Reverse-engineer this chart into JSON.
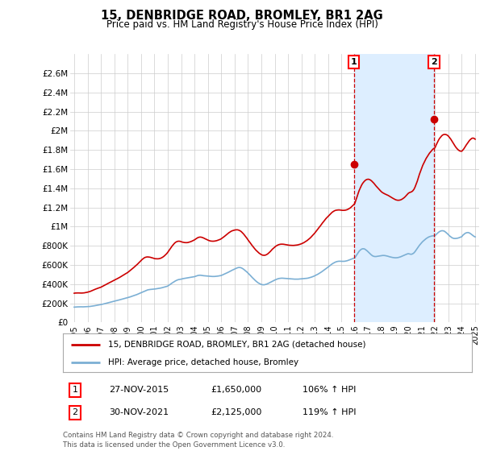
{
  "title": "15, DENBRIDGE ROAD, BROMLEY, BR1 2AG",
  "subtitle": "Price paid vs. HM Land Registry's House Price Index (HPI)",
  "ylim": [
    0,
    2800000
  ],
  "yticks": [
    0,
    200000,
    400000,
    600000,
    800000,
    1000000,
    1200000,
    1400000,
    1600000,
    1800000,
    2000000,
    2200000,
    2400000,
    2600000
  ],
  "ytick_labels": [
    "£0",
    "£200K",
    "£400K",
    "£600K",
    "£800K",
    "£1M",
    "£1.2M",
    "£1.4M",
    "£1.6M",
    "£1.8M",
    "£2M",
    "£2.2M",
    "£2.4M",
    "£2.6M"
  ],
  "hpi_color": "#7bafd4",
  "property_color": "#cc0000",
  "marker_color": "#cc0000",
  "sale1_x": 2015.92,
  "sale1_y": 1650000,
  "sale2_x": 2021.92,
  "sale2_y": 2125000,
  "vline_color": "#cc0000",
  "shade_color": "#ddeeff",
  "background_color": "#ffffff",
  "grid_color": "#cccccc",
  "legend_label_property": "15, DENBRIDGE ROAD, BROMLEY, BR1 2AG (detached house)",
  "legend_label_hpi": "HPI: Average price, detached house, Bromley",
  "annotation1_num": "1",
  "annotation1_date": "27-NOV-2015",
  "annotation1_price": "£1,650,000",
  "annotation1_pct": "106% ↑ HPI",
  "annotation2_num": "2",
  "annotation2_date": "30-NOV-2021",
  "annotation2_price": "£2,125,000",
  "annotation2_pct": "119% ↑ HPI",
  "footer": "Contains HM Land Registry data © Crown copyright and database right 2024.\nThis data is licensed under the Open Government Licence v3.0.",
  "xlim_left": 1994.7,
  "xlim_right": 2025.3,
  "hpi_data": {
    "1995.0": 160000,
    "1995.08": 161000,
    "1995.17": 162000,
    "1995.25": 162500,
    "1995.33": 163000,
    "1995.42": 163500,
    "1995.5": 163500,
    "1995.58": 163000,
    "1995.67": 163000,
    "1995.75": 163500,
    "1995.83": 164000,
    "1995.92": 164500,
    "1996.0": 165000,
    "1996.08": 166000,
    "1996.17": 167000,
    "1996.25": 168500,
    "1996.33": 170000,
    "1996.42": 172000,
    "1996.5": 174000,
    "1996.58": 176000,
    "1996.67": 178000,
    "1996.75": 180000,
    "1996.83": 182000,
    "1996.92": 184000,
    "1997.0": 186000,
    "1997.08": 189000,
    "1997.17": 192000,
    "1997.25": 195000,
    "1997.33": 198000,
    "1997.42": 201000,
    "1997.5": 204000,
    "1997.58": 207000,
    "1997.67": 210000,
    "1997.75": 213000,
    "1997.83": 216000,
    "1997.92": 219000,
    "1998.0": 222000,
    "1998.08": 225000,
    "1998.17": 228000,
    "1998.25": 231000,
    "1998.33": 234000,
    "1998.42": 237000,
    "1998.5": 240000,
    "1998.58": 243000,
    "1998.67": 246000,
    "1998.75": 249000,
    "1998.83": 252000,
    "1998.92": 255000,
    "1999.0": 258000,
    "1999.08": 262000,
    "1999.17": 266000,
    "1999.25": 270000,
    "1999.33": 274000,
    "1999.42": 278000,
    "1999.5": 282000,
    "1999.58": 286000,
    "1999.67": 290000,
    "1999.75": 295000,
    "1999.83": 300000,
    "1999.92": 305000,
    "2000.0": 310000,
    "2000.08": 315000,
    "2000.17": 320000,
    "2000.25": 325000,
    "2000.33": 330000,
    "2000.42": 335000,
    "2000.5": 340000,
    "2000.58": 342000,
    "2000.67": 344000,
    "2000.75": 345000,
    "2000.83": 346000,
    "2000.92": 347000,
    "2001.0": 348000,
    "2001.08": 350000,
    "2001.17": 352000,
    "2001.25": 354000,
    "2001.33": 356000,
    "2001.42": 358000,
    "2001.5": 360000,
    "2001.58": 363000,
    "2001.67": 366000,
    "2001.75": 369000,
    "2001.83": 372000,
    "2001.92": 376000,
    "2002.0": 380000,
    "2002.08": 388000,
    "2002.17": 396000,
    "2002.25": 404000,
    "2002.33": 412000,
    "2002.42": 420000,
    "2002.5": 428000,
    "2002.58": 434000,
    "2002.67": 440000,
    "2002.75": 445000,
    "2002.83": 448000,
    "2002.92": 450000,
    "2003.0": 452000,
    "2003.08": 455000,
    "2003.17": 458000,
    "2003.25": 460000,
    "2003.33": 462000,
    "2003.42": 464000,
    "2003.5": 466000,
    "2003.58": 468000,
    "2003.67": 470000,
    "2003.75": 472000,
    "2003.83": 474000,
    "2003.92": 476000,
    "2004.0": 478000,
    "2004.08": 482000,
    "2004.17": 486000,
    "2004.25": 490000,
    "2004.33": 492000,
    "2004.42": 493000,
    "2004.5": 492000,
    "2004.58": 490000,
    "2004.67": 488000,
    "2004.75": 487000,
    "2004.83": 486000,
    "2004.92": 485000,
    "2005.0": 484000,
    "2005.08": 483000,
    "2005.17": 482000,
    "2005.25": 481000,
    "2005.33": 480000,
    "2005.42": 480000,
    "2005.5": 480000,
    "2005.58": 481000,
    "2005.67": 482000,
    "2005.75": 484000,
    "2005.83": 486000,
    "2005.92": 488000,
    "2006.0": 490000,
    "2006.08": 495000,
    "2006.17": 500000,
    "2006.25": 505000,
    "2006.33": 510000,
    "2006.42": 516000,
    "2006.5": 522000,
    "2006.58": 528000,
    "2006.67": 534000,
    "2006.75": 540000,
    "2006.83": 546000,
    "2006.92": 552000,
    "2007.0": 558000,
    "2007.08": 563000,
    "2007.17": 568000,
    "2007.25": 572000,
    "2007.33": 574000,
    "2007.42": 573000,
    "2007.5": 570000,
    "2007.58": 564000,
    "2007.67": 556000,
    "2007.75": 547000,
    "2007.83": 537000,
    "2007.92": 527000,
    "2008.0": 516000,
    "2008.08": 504000,
    "2008.17": 492000,
    "2008.25": 480000,
    "2008.33": 468000,
    "2008.42": 456000,
    "2008.5": 445000,
    "2008.58": 434000,
    "2008.67": 424000,
    "2008.75": 415000,
    "2008.83": 408000,
    "2008.92": 402000,
    "2009.0": 397000,
    "2009.08": 394000,
    "2009.17": 393000,
    "2009.25": 394000,
    "2009.33": 397000,
    "2009.42": 401000,
    "2009.5": 406000,
    "2009.58": 412000,
    "2009.67": 418000,
    "2009.75": 424000,
    "2009.83": 430000,
    "2009.92": 436000,
    "2010.0": 442000,
    "2010.08": 447000,
    "2010.17": 452000,
    "2010.25": 456000,
    "2010.33": 459000,
    "2010.42": 461000,
    "2010.5": 462000,
    "2010.58": 462000,
    "2010.67": 461000,
    "2010.75": 460000,
    "2010.83": 459000,
    "2010.92": 458000,
    "2011.0": 457000,
    "2011.08": 456000,
    "2011.17": 455000,
    "2011.25": 454000,
    "2011.33": 453000,
    "2011.42": 452000,
    "2011.5": 452000,
    "2011.58": 452000,
    "2011.67": 452000,
    "2011.75": 452000,
    "2011.83": 453000,
    "2011.92": 454000,
    "2012.0": 455000,
    "2012.08": 456000,
    "2012.17": 457000,
    "2012.25": 458000,
    "2012.33": 459000,
    "2012.42": 461000,
    "2012.5": 463000,
    "2012.58": 466000,
    "2012.67": 469000,
    "2012.75": 473000,
    "2012.83": 477000,
    "2012.92": 482000,
    "2013.0": 487000,
    "2013.08": 493000,
    "2013.17": 499000,
    "2013.25": 505000,
    "2013.33": 512000,
    "2013.42": 519000,
    "2013.5": 527000,
    "2013.58": 535000,
    "2013.67": 543000,
    "2013.75": 552000,
    "2013.83": 561000,
    "2013.92": 570000,
    "2014.0": 579000,
    "2014.08": 588000,
    "2014.17": 597000,
    "2014.25": 606000,
    "2014.33": 614000,
    "2014.42": 621000,
    "2014.5": 627000,
    "2014.58": 632000,
    "2014.67": 636000,
    "2014.75": 638000,
    "2014.83": 639000,
    "2014.92": 639000,
    "2015.0": 638000,
    "2015.08": 638000,
    "2015.17": 638000,
    "2015.25": 639000,
    "2015.33": 641000,
    "2015.42": 644000,
    "2015.5": 648000,
    "2015.58": 652000,
    "2015.67": 657000,
    "2015.75": 662000,
    "2015.83": 666000,
    "2015.92": 670000,
    "2016.0": 674000,
    "2016.08": 693000,
    "2016.17": 712000,
    "2016.25": 730000,
    "2016.33": 745000,
    "2016.42": 757000,
    "2016.5": 765000,
    "2016.58": 769000,
    "2016.67": 769000,
    "2016.75": 765000,
    "2016.83": 757000,
    "2016.92": 747000,
    "2017.0": 736000,
    "2017.08": 724000,
    "2017.17": 713000,
    "2017.25": 703000,
    "2017.33": 695000,
    "2017.42": 690000,
    "2017.5": 688000,
    "2017.58": 688000,
    "2017.67": 690000,
    "2017.75": 692000,
    "2017.83": 694000,
    "2017.92": 696000,
    "2018.0": 698000,
    "2018.08": 699000,
    "2018.17": 699000,
    "2018.25": 698000,
    "2018.33": 696000,
    "2018.42": 693000,
    "2018.5": 690000,
    "2018.58": 686000,
    "2018.67": 683000,
    "2018.75": 680000,
    "2018.83": 678000,
    "2018.92": 676000,
    "2019.0": 675000,
    "2019.08": 675000,
    "2019.17": 676000,
    "2019.25": 678000,
    "2019.33": 681000,
    "2019.42": 685000,
    "2019.5": 690000,
    "2019.58": 695000,
    "2019.67": 700000,
    "2019.75": 705000,
    "2019.83": 710000,
    "2019.92": 715000,
    "2020.0": 718000,
    "2020.08": 715000,
    "2020.17": 712000,
    "2020.25": 712000,
    "2020.33": 717000,
    "2020.42": 726000,
    "2020.5": 739000,
    "2020.58": 755000,
    "2020.67": 772000,
    "2020.75": 789000,
    "2020.83": 805000,
    "2020.92": 820000,
    "2021.0": 833000,
    "2021.08": 845000,
    "2021.17": 856000,
    "2021.25": 866000,
    "2021.33": 875000,
    "2021.42": 883000,
    "2021.5": 890000,
    "2021.58": 895000,
    "2021.67": 899000,
    "2021.75": 902000,
    "2021.83": 904000,
    "2021.92": 905000,
    "2022.0": 905000,
    "2022.08": 918000,
    "2022.17": 930000,
    "2022.25": 940000,
    "2022.33": 948000,
    "2022.42": 954000,
    "2022.5": 957000,
    "2022.58": 957000,
    "2022.67": 954000,
    "2022.75": 947000,
    "2022.83": 938000,
    "2022.92": 927000,
    "2023.0": 915000,
    "2023.08": 904000,
    "2023.17": 894000,
    "2023.25": 886000,
    "2023.33": 880000,
    "2023.42": 877000,
    "2023.5": 876000,
    "2023.58": 877000,
    "2023.67": 879000,
    "2023.75": 882000,
    "2023.83": 886000,
    "2023.92": 890000,
    "2024.0": 895000,
    "2024.08": 910000,
    "2024.17": 920000,
    "2024.25": 930000,
    "2024.33": 935000,
    "2024.42": 938000,
    "2024.5": 938000,
    "2024.58": 933000,
    "2024.67": 925000,
    "2024.75": 916000,
    "2024.83": 907000,
    "2024.92": 898000,
    "2025.0": 893000
  },
  "prop_data": {
    "1995.0": 305000,
    "1995.08": 307000,
    "1995.17": 308000,
    "1995.25": 308000,
    "1995.33": 308000,
    "1995.42": 307000,
    "1995.5": 307000,
    "1995.58": 307000,
    "1995.67": 308000,
    "1995.75": 309000,
    "1995.83": 311000,
    "1995.92": 313000,
    "1996.0": 316000,
    "1996.08": 319000,
    "1996.17": 323000,
    "1996.25": 327000,
    "1996.33": 332000,
    "1996.42": 337000,
    "1996.5": 342000,
    "1996.58": 347000,
    "1996.67": 352000,
    "1996.75": 356000,
    "1996.83": 360000,
    "1996.92": 364000,
    "1997.0": 368000,
    "1997.08": 374000,
    "1997.17": 380000,
    "1997.25": 387000,
    "1997.33": 393000,
    "1997.42": 399000,
    "1997.5": 405000,
    "1997.58": 411000,
    "1997.67": 417000,
    "1997.75": 423000,
    "1997.83": 429000,
    "1997.92": 435000,
    "1998.0": 441000,
    "1998.08": 447000,
    "1998.17": 453000,
    "1998.25": 459000,
    "1998.33": 465000,
    "1998.42": 472000,
    "1998.5": 479000,
    "1998.58": 486000,
    "1998.67": 493000,
    "1998.75": 500000,
    "1998.83": 507000,
    "1998.92": 514000,
    "1999.0": 521000,
    "1999.08": 530000,
    "1999.17": 539000,
    "1999.25": 549000,
    "1999.33": 559000,
    "1999.42": 569000,
    "1999.5": 579000,
    "1999.58": 589000,
    "1999.67": 599000,
    "1999.75": 610000,
    "1999.83": 622000,
    "1999.92": 634000,
    "2000.0": 646000,
    "2000.08": 657000,
    "2000.17": 667000,
    "2000.25": 675000,
    "2000.33": 680000,
    "2000.42": 683000,
    "2000.5": 684000,
    "2000.58": 683000,
    "2000.67": 681000,
    "2000.75": 678000,
    "2000.83": 675000,
    "2000.92": 671000,
    "2001.0": 667000,
    "2001.08": 665000,
    "2001.17": 664000,
    "2001.25": 664000,
    "2001.33": 665000,
    "2001.42": 668000,
    "2001.5": 672000,
    "2001.58": 678000,
    "2001.67": 686000,
    "2001.75": 695000,
    "2001.83": 706000,
    "2001.92": 718000,
    "2002.0": 732000,
    "2002.08": 748000,
    "2002.17": 765000,
    "2002.25": 782000,
    "2002.33": 798000,
    "2002.42": 813000,
    "2002.5": 826000,
    "2002.58": 836000,
    "2002.67": 843000,
    "2002.75": 847000,
    "2002.83": 848000,
    "2002.92": 847000,
    "2003.0": 843000,
    "2003.08": 839000,
    "2003.17": 836000,
    "2003.25": 834000,
    "2003.33": 833000,
    "2003.42": 833000,
    "2003.5": 834000,
    "2003.58": 837000,
    "2003.67": 841000,
    "2003.75": 845000,
    "2003.83": 850000,
    "2003.92": 856000,
    "2004.0": 862000,
    "2004.08": 870000,
    "2004.17": 878000,
    "2004.25": 885000,
    "2004.33": 889000,
    "2004.42": 891000,
    "2004.5": 890000,
    "2004.58": 887000,
    "2004.67": 882000,
    "2004.75": 876000,
    "2004.83": 871000,
    "2004.92": 865000,
    "2005.0": 859000,
    "2005.08": 855000,
    "2005.17": 851000,
    "2005.25": 849000,
    "2005.33": 848000,
    "2005.42": 848000,
    "2005.5": 849000,
    "2005.58": 851000,
    "2005.67": 854000,
    "2005.75": 858000,
    "2005.83": 862000,
    "2005.92": 867000,
    "2006.0": 873000,
    "2006.08": 881000,
    "2006.17": 890000,
    "2006.25": 899000,
    "2006.33": 908000,
    "2006.42": 918000,
    "2006.5": 928000,
    "2006.58": 937000,
    "2006.67": 945000,
    "2006.75": 952000,
    "2006.83": 957000,
    "2006.92": 961000,
    "2007.0": 964000,
    "2007.08": 966000,
    "2007.17": 967000,
    "2007.25": 966000,
    "2007.33": 962000,
    "2007.42": 956000,
    "2007.5": 948000,
    "2007.58": 937000,
    "2007.67": 924000,
    "2007.75": 910000,
    "2007.83": 895000,
    "2007.92": 879000,
    "2008.0": 863000,
    "2008.08": 847000,
    "2008.17": 831000,
    "2008.25": 815000,
    "2008.33": 800000,
    "2008.42": 785000,
    "2008.5": 771000,
    "2008.58": 757000,
    "2008.67": 745000,
    "2008.75": 734000,
    "2008.83": 724000,
    "2008.92": 715000,
    "2009.0": 708000,
    "2009.08": 703000,
    "2009.17": 701000,
    "2009.25": 701000,
    "2009.33": 704000,
    "2009.42": 710000,
    "2009.5": 718000,
    "2009.58": 728000,
    "2009.67": 740000,
    "2009.75": 753000,
    "2009.83": 765000,
    "2009.92": 776000,
    "2010.0": 786000,
    "2010.08": 795000,
    "2010.17": 803000,
    "2010.25": 809000,
    "2010.33": 813000,
    "2010.42": 816000,
    "2010.5": 817000,
    "2010.58": 817000,
    "2010.67": 816000,
    "2010.75": 814000,
    "2010.83": 812000,
    "2010.92": 810000,
    "2011.0": 808000,
    "2011.08": 806000,
    "2011.17": 805000,
    "2011.25": 804000,
    "2011.33": 804000,
    "2011.42": 804000,
    "2011.5": 805000,
    "2011.58": 806000,
    "2011.67": 808000,
    "2011.75": 810000,
    "2011.83": 813000,
    "2011.92": 817000,
    "2012.0": 821000,
    "2012.08": 826000,
    "2012.17": 832000,
    "2012.25": 839000,
    "2012.33": 846000,
    "2012.42": 854000,
    "2012.5": 863000,
    "2012.58": 873000,
    "2012.67": 883000,
    "2012.75": 895000,
    "2012.83": 907000,
    "2012.92": 920000,
    "2013.0": 933000,
    "2013.08": 947000,
    "2013.17": 962000,
    "2013.25": 978000,
    "2013.33": 993000,
    "2013.42": 1008000,
    "2013.5": 1024000,
    "2013.58": 1039000,
    "2013.67": 1054000,
    "2013.75": 1069000,
    "2013.83": 1083000,
    "2013.92": 1096000,
    "2014.0": 1108000,
    "2014.08": 1120000,
    "2014.17": 1132000,
    "2014.25": 1143000,
    "2014.33": 1153000,
    "2014.42": 1161000,
    "2014.5": 1167000,
    "2014.58": 1171000,
    "2014.67": 1173000,
    "2014.75": 1174000,
    "2014.83": 1174000,
    "2014.92": 1173000,
    "2015.0": 1171000,
    "2015.08": 1170000,
    "2015.17": 1170000,
    "2015.25": 1171000,
    "2015.33": 1173000,
    "2015.42": 1177000,
    "2015.5": 1182000,
    "2015.58": 1189000,
    "2015.67": 1197000,
    "2015.75": 1207000,
    "2015.83": 1218000,
    "2015.92": 1230000,
    "2016.0": 1243000,
    "2016.08": 1278000,
    "2016.17": 1314000,
    "2016.25": 1349000,
    "2016.33": 1380000,
    "2016.42": 1408000,
    "2016.5": 1432000,
    "2016.58": 1451000,
    "2016.67": 1467000,
    "2016.75": 1479000,
    "2016.83": 1488000,
    "2016.92": 1493000,
    "2017.0": 1495000,
    "2017.08": 1492000,
    "2017.17": 1486000,
    "2017.25": 1477000,
    "2017.33": 1466000,
    "2017.42": 1453000,
    "2017.5": 1439000,
    "2017.58": 1425000,
    "2017.67": 1411000,
    "2017.75": 1398000,
    "2017.83": 1385000,
    "2017.92": 1373000,
    "2018.0": 1362000,
    "2018.08": 1354000,
    "2018.17": 1347000,
    "2018.25": 1341000,
    "2018.33": 1336000,
    "2018.42": 1330000,
    "2018.5": 1325000,
    "2018.58": 1318000,
    "2018.67": 1311000,
    "2018.75": 1304000,
    "2018.83": 1297000,
    "2018.92": 1290000,
    "2019.0": 1284000,
    "2019.08": 1279000,
    "2019.17": 1276000,
    "2019.25": 1275000,
    "2019.33": 1276000,
    "2019.42": 1279000,
    "2019.5": 1284000,
    "2019.58": 1291000,
    "2019.67": 1300000,
    "2019.75": 1310000,
    "2019.83": 1322000,
    "2019.92": 1335000,
    "2020.0": 1348000,
    "2020.08": 1355000,
    "2020.17": 1360000,
    "2020.25": 1364000,
    "2020.33": 1373000,
    "2020.42": 1389000,
    "2020.5": 1412000,
    "2020.58": 1441000,
    "2020.67": 1474000,
    "2020.75": 1510000,
    "2020.83": 1546000,
    "2020.92": 1580000,
    "2021.0": 1611000,
    "2021.08": 1640000,
    "2021.17": 1666000,
    "2021.25": 1690000,
    "2021.33": 1711000,
    "2021.42": 1731000,
    "2021.5": 1749000,
    "2021.58": 1766000,
    "2021.67": 1781000,
    "2021.75": 1795000,
    "2021.83": 1807000,
    "2021.92": 1817000,
    "2022.0": 1824000,
    "2022.08": 1851000,
    "2022.17": 1877000,
    "2022.25": 1900000,
    "2022.33": 1919000,
    "2022.42": 1935000,
    "2022.5": 1948000,
    "2022.58": 1957000,
    "2022.67": 1962000,
    "2022.75": 1963000,
    "2022.83": 1960000,
    "2022.92": 1954000,
    "2023.0": 1944000,
    "2023.08": 1930000,
    "2023.17": 1914000,
    "2023.25": 1896000,
    "2023.33": 1877000,
    "2023.42": 1858000,
    "2023.5": 1840000,
    "2023.58": 1824000,
    "2023.67": 1810000,
    "2023.75": 1799000,
    "2023.83": 1791000,
    "2023.92": 1787000,
    "2024.0": 1787000,
    "2024.08": 1799000,
    "2024.17": 1815000,
    "2024.25": 1833000,
    "2024.33": 1851000,
    "2024.42": 1869000,
    "2024.5": 1885000,
    "2024.58": 1900000,
    "2024.67": 1912000,
    "2024.75": 1921000,
    "2024.83": 1924000,
    "2024.92": 1921000,
    "2025.0": 1912000
  }
}
